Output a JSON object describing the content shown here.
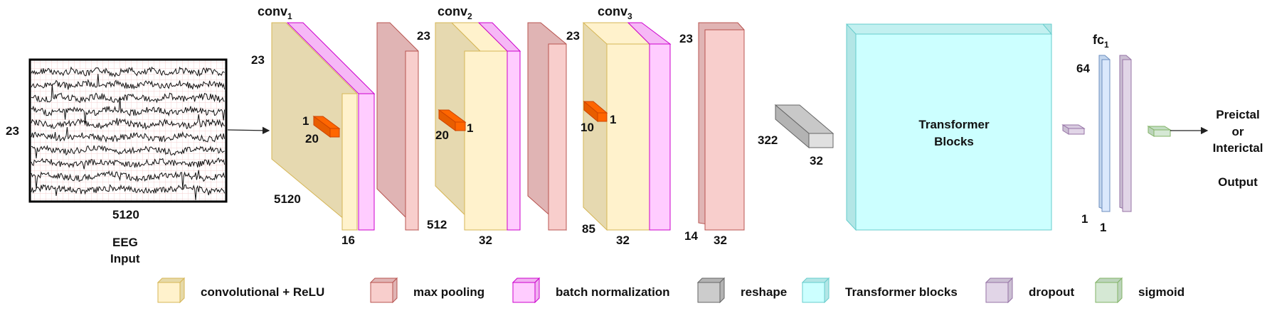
{
  "input": {
    "height_label": "23",
    "width_label": "5120",
    "caption_line1": "EEG",
    "caption_line2": "Input"
  },
  "conv1": {
    "title": "conv",
    "sub": "1",
    "height_label": "23",
    "depth_label": "5120",
    "filters_label": "16",
    "kernel_h": "1",
    "kernel_w": "20"
  },
  "conv2": {
    "title": "conv",
    "sub": "2",
    "height_label": "23",
    "depth_label": "512",
    "filters_label": "32",
    "kernel_h": "1",
    "kernel_w": "20"
  },
  "conv3": {
    "title": "conv",
    "sub": "3",
    "height_label": "23",
    "depth_label": "85",
    "filters_label": "32",
    "kernel_h": "1",
    "kernel_w": "10"
  },
  "pool3": {
    "height_label": "23",
    "depth_label": "14",
    "width_label": "32"
  },
  "reshape": {
    "rows_label": "322",
    "cols_label": "32"
  },
  "transformer": {
    "line1": "Transformer",
    "line2": "Blocks"
  },
  "fc": {
    "title": "fc",
    "sub": "1",
    "units_label": "64",
    "left_one": "1",
    "bottom_one": "1"
  },
  "output": {
    "line1": "Preictal",
    "line2": "or",
    "line3": "Interictal",
    "line4": "Output"
  },
  "legend": [
    {
      "label": "convolutional + ReLU",
      "front": "#fff2cc",
      "side": "#e6d9a8",
      "stroke": "#d6b656"
    },
    {
      "label": "max pooling",
      "front": "#f8cecc",
      "side": "#e0b4b4",
      "stroke": "#b85450"
    },
    {
      "label": "batch normalization",
      "front": "#ffccff",
      "side": "#f0b0f0",
      "stroke": "#cc00cc"
    },
    {
      "label": "reshape",
      "front": "#cccccc",
      "side": "#b3b3b3",
      "stroke": "#666666"
    },
    {
      "label": "Transformer blocks",
      "front": "#ccffff",
      "side": "#b3e6e6",
      "stroke": "#66cccc"
    },
    {
      "label": "dropout",
      "front": "#e1d5e7",
      "side": "#cbbfd3",
      "stroke": "#9673a6"
    },
    {
      "label": "sigmoid",
      "front": "#d5e8d4",
      "side": "#bcd4bb",
      "stroke": "#82b366"
    }
  ],
  "colors": {
    "conv_front": "#fff2cc",
    "conv_side": "#e6d9b0",
    "conv_stroke": "#d6b656",
    "pool_front": "#f8cecc",
    "pool_side": "#e0b4b4",
    "pool_stroke": "#b85450",
    "bn_front": "#ffccff",
    "bn_stroke": "#cc00cc",
    "kernel": "#ff6600",
    "trans_front": "#ccffff",
    "trans_side": "#b3e6e6",
    "trans_stroke": "#66cccc"
  }
}
